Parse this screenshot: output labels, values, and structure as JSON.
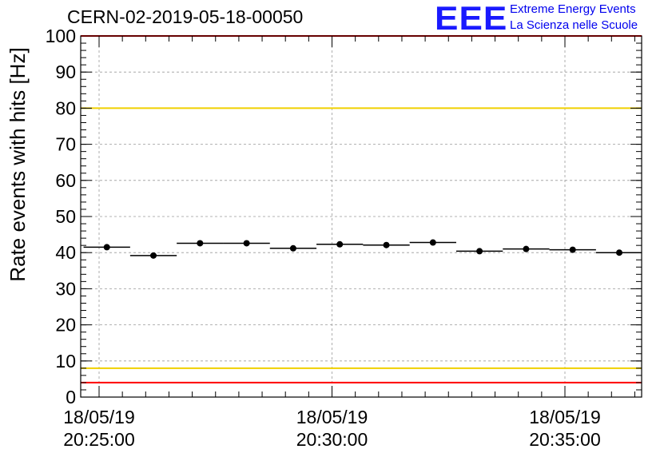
{
  "header": {
    "title": "CERN-02-2019-05-18-00050"
  },
  "logo": {
    "mark": "EEE",
    "line1": "Extreme Energy Events",
    "line2": "La Scienza nelle Scuole",
    "color": "#0000ee"
  },
  "chart_data": {
    "type": "scatter",
    "ylabel": "Rate events with hits [Hz]",
    "xlabel": "",
    "ylim": [
      0,
      100
    ],
    "y_ticks": [
      0,
      10,
      20,
      30,
      40,
      50,
      60,
      70,
      80,
      90,
      100
    ],
    "x_tick_labels": [
      {
        "date": "18/05/19",
        "time": "20:25:00"
      },
      {
        "date": "18/05/19",
        "time": "20:30:00"
      },
      {
        "date": "18/05/19",
        "time": "20:35:00"
      }
    ],
    "grid": true,
    "error_bars": "horizontal (bin width)",
    "points": [
      {
        "time": "20:25:10",
        "rate": 41.5
      },
      {
        "time": "20:26:10",
        "rate": 39.2
      },
      {
        "time": "20:27:10",
        "rate": 42.6
      },
      {
        "time": "20:28:10",
        "rate": 42.6
      },
      {
        "time": "20:29:10",
        "rate": 41.2
      },
      {
        "time": "20:30:10",
        "rate": 42.3
      },
      {
        "time": "20:31:10",
        "rate": 42.1
      },
      {
        "time": "20:32:10",
        "rate": 42.8
      },
      {
        "time": "20:33:10",
        "rate": 40.4
      },
      {
        "time": "20:34:10",
        "rate": 41.0
      },
      {
        "time": "20:35:10",
        "rate": 40.8
      },
      {
        "time": "20:36:10",
        "rate": 40.0
      }
    ],
    "reference_lines": [
      {
        "value": 100,
        "color": "#ff0000"
      },
      {
        "value": 80,
        "color": "#f0d000"
      },
      {
        "value": 8,
        "color": "#f0d000"
      },
      {
        "value": 4,
        "color": "#ff0000"
      }
    ]
  }
}
